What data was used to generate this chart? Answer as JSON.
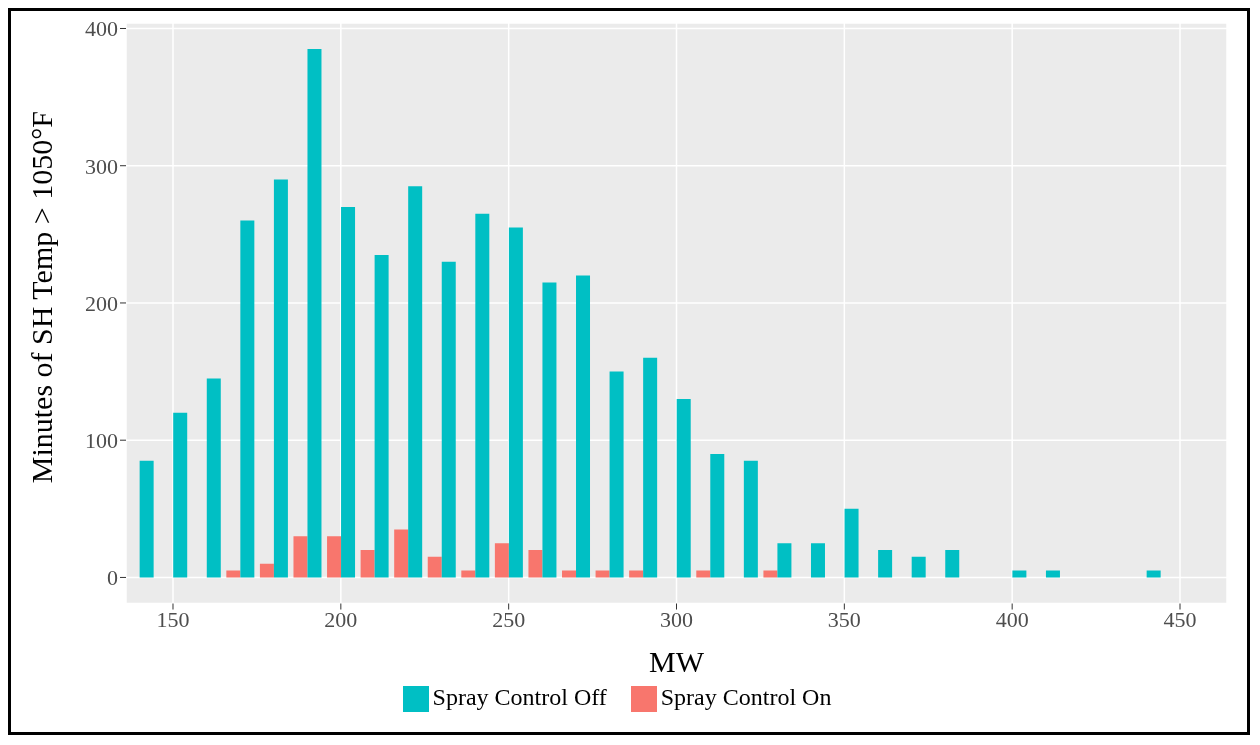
{
  "chart_data": {
    "type": "bar",
    "xlabel": "MW",
    "ylabel": "Minutes of SH Temp > 1050°F",
    "x": [
      140,
      150,
      160,
      170,
      180,
      190,
      200,
      210,
      220,
      230,
      240,
      250,
      260,
      270,
      280,
      290,
      300,
      310,
      320,
      330,
      340,
      350,
      360,
      370,
      380,
      390,
      400,
      410,
      420,
      430,
      440
    ],
    "series": [
      {
        "name": "Spray Control On",
        "color": "#f8766d",
        "values": [
          null,
          null,
          null,
          5,
          10,
          30,
          30,
          20,
          35,
          15,
          5,
          25,
          20,
          5,
          5,
          5,
          null,
          5,
          null,
          5,
          null,
          null,
          null,
          null,
          null,
          null,
          null,
          null,
          null,
          null,
          null
        ]
      },
      {
        "name": "Spray Control Off",
        "color": "#00bfc4",
        "values": [
          85,
          120,
          145,
          260,
          290,
          385,
          270,
          235,
          285,
          230,
          265,
          255,
          215,
          220,
          150,
          160,
          130,
          90,
          85,
          25,
          25,
          50,
          20,
          15,
          20,
          null,
          5,
          5,
          null,
          null,
          5
        ]
      }
    ],
    "xlim": [
      136,
      464
    ],
    "xticks": [
      150,
      200,
      250,
      300,
      350,
      400,
      450
    ],
    "ylim": [
      -19,
      404
    ],
    "yticks": [
      0,
      100,
      200,
      300,
      400
    ],
    "grid": true,
    "legend": "bottom"
  }
}
